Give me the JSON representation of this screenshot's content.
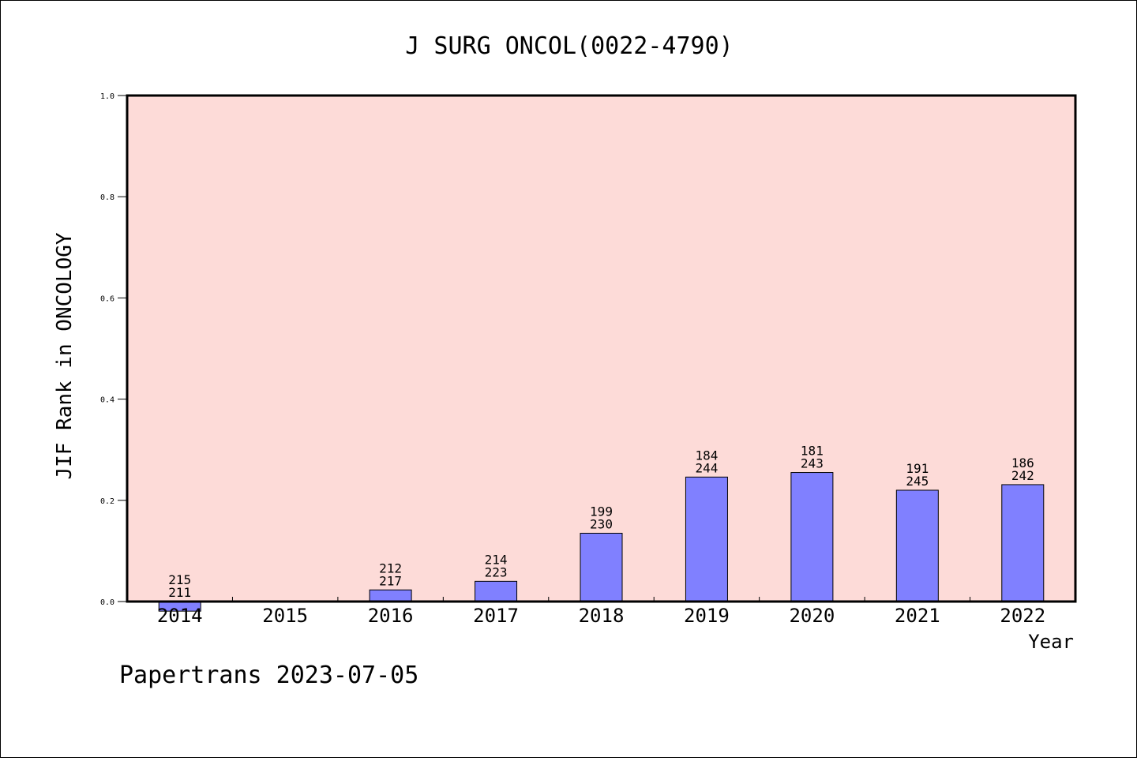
{
  "chart_data": {
    "type": "bar",
    "title": "J SURG ONCOL(0022-4790)",
    "xlabel": "Year",
    "ylabel": "JIF Rank in ONCOLOGY",
    "ylim": [
      0.0,
      1.0
    ],
    "yticks": [
      "0.0",
      "0.2",
      "0.4",
      "0.6",
      "0.8",
      "1.0"
    ],
    "categories": [
      "2014",
      "2015",
      "2016",
      "2017",
      "2018",
      "2019",
      "2020",
      "2021",
      "2022"
    ],
    "values": [
      -0.019,
      null,
      0.023,
      0.04,
      0.135,
      0.246,
      0.255,
      0.22,
      0.231
    ],
    "rank_labels": [
      "215",
      "",
      "212",
      "214",
      "199",
      "184",
      "181",
      "191",
      "186"
    ],
    "total_labels": [
      "211",
      "",
      "217",
      "223",
      "230",
      "244",
      "243",
      "245",
      "242"
    ],
    "grid": false,
    "legend": "none",
    "colors": {
      "plot_background": "#fddbd8",
      "bar_fill": "#8080ff",
      "bar_stroke": "#000000"
    }
  },
  "footer": {
    "credit": "Papertrans 2023-07-05"
  }
}
